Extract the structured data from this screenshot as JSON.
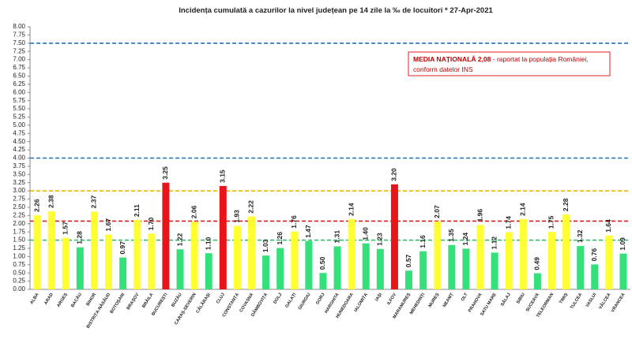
{
  "chart_data": {
    "type": "bar",
    "title": "Incidența cumulată a cazurilor la nivel județean pe 14 zile la ‰ de locuitori *   27-Apr-2021",
    "categories": [
      "ALBA",
      "ARAD",
      "ARGEȘ",
      "BACĂU",
      "BIHOR",
      "BISTRIȚA-NĂSĂUD",
      "BOTOȘANI",
      "BRAȘOV",
      "BRĂILA",
      "BUCUREȘTI",
      "BUZĂU",
      "CARAȘ-SEVERIN",
      "CĂLĂRAȘI",
      "CLUJ",
      "CONSTANȚA",
      "COVASNA",
      "DÂMBOVIȚA",
      "DOLJ",
      "GALAȚI",
      "GIURGIU",
      "GORJ",
      "HARGHITA",
      "HUNEDOARA",
      "IALOMIȚA",
      "IAȘI",
      "ILFOV",
      "MARAMUREȘ",
      "MEHEDINȚI",
      "MUREȘ",
      "NEAMȚ",
      "OLT",
      "PRAHOVA",
      "SATU MARE",
      "SĂLAJ",
      "SIBIU",
      "SUCEAVA",
      "TELEORMAN",
      "TIMIȘ",
      "TULCEA",
      "VASLUI",
      "VÂLCEA",
      "VRANCEA"
    ],
    "values": [
      2.26,
      2.38,
      1.57,
      1.28,
      2.37,
      1.67,
      0.97,
      2.11,
      1.7,
      3.25,
      1.22,
      2.06,
      1.1,
      3.15,
      1.93,
      2.22,
      1.03,
      1.26,
      1.76,
      1.47,
      0.5,
      1.31,
      2.14,
      1.4,
      1.23,
      3.2,
      0.57,
      1.16,
      2.07,
      1.35,
      1.24,
      1.96,
      1.12,
      1.74,
      2.14,
      0.49,
      1.75,
      2.28,
      1.32,
      0.76,
      1.64,
      1.09
    ],
    "value_labels": [
      "2.26",
      "2.38",
      "1.57",
      "1.28",
      "2.37",
      "1.67",
      "0.97",
      "2.11",
      "1.70",
      "3.25",
      "1.22",
      "2.06",
      "1.10",
      "3.15",
      "1.93",
      "2.22",
      "1.03",
      "1.26",
      "1.76",
      "1.47",
      "0.50",
      "1.31",
      "2.14",
      "1.40",
      "1.23",
      "3.20",
      "0.57",
      "1.16",
      "2.07",
      "1.35",
      "1.24",
      "1.96",
      "1.12",
      "1.74",
      "2.14",
      "0.49",
      "1.75",
      "2.28",
      "1.32",
      "0.76",
      "1.64",
      "1.09"
    ],
    "colors": [
      "#ffff33",
      "#ffff33",
      "#ffff33",
      "#33e07a",
      "#ffff33",
      "#ffff33",
      "#33e07a",
      "#ffff33",
      "#ffff33",
      "#e8141a",
      "#33e07a",
      "#ffff33",
      "#33e07a",
      "#e8141a",
      "#ffff33",
      "#ffff33",
      "#33e07a",
      "#33e07a",
      "#ffff33",
      "#33e07a",
      "#33e07a",
      "#33e07a",
      "#ffff33",
      "#33e07a",
      "#33e07a",
      "#e8141a",
      "#33e07a",
      "#33e07a",
      "#ffff33",
      "#33e07a",
      "#33e07a",
      "#ffff33",
      "#33e07a",
      "#ffff33",
      "#ffff33",
      "#33e07a",
      "#ffff33",
      "#ffff33",
      "#33e07a",
      "#33e07a",
      "#ffff33",
      "#33e07a"
    ],
    "ylim": [
      0,
      8
    ],
    "yticks": [
      {
        "value": 0,
        "label": "0.00"
      },
      {
        "value": 0.25,
        "label": "0.25"
      },
      {
        "value": 0.5,
        "label": "0.50"
      },
      {
        "value": 0.75,
        "label": "0.75"
      },
      {
        "value": 1,
        "label": "1.00"
      },
      {
        "value": 1.25,
        "label": "1.25"
      },
      {
        "value": 1.5,
        "label": "1.50"
      },
      {
        "value": 1.75,
        "label": "1.75"
      },
      {
        "value": 2,
        "label": "2.00"
      },
      {
        "value": 2.25,
        "label": "2.25"
      },
      {
        "value": 2.5,
        "label": "2.50"
      },
      {
        "value": 2.75,
        "label": "2.75"
      },
      {
        "value": 3,
        "label": "3.00"
      },
      {
        "value": 3.25,
        "label": "3.25"
      },
      {
        "value": 3.5,
        "label": "3.50"
      },
      {
        "value": 3.75,
        "label": "3.75"
      },
      {
        "value": 4,
        "label": "4.00"
      },
      {
        "value": 4.25,
        "label": "4.25"
      },
      {
        "value": 4.5,
        "label": "4.50"
      },
      {
        "value": 4.75,
        "label": "4.75"
      },
      {
        "value": 5,
        "label": "5.00"
      },
      {
        "value": 5.25,
        "label": "5.25"
      },
      {
        "value": 5.5,
        "label": "5.50"
      },
      {
        "value": 5.75,
        "label": "5.75"
      },
      {
        "value": 6,
        "label": "6.00"
      },
      {
        "value": 6.25,
        "label": "6.25"
      },
      {
        "value": 6.5,
        "label": "6.50"
      },
      {
        "value": 6.75,
        "label": "6.75"
      },
      {
        "value": 7,
        "label": "7.00"
      },
      {
        "value": 7.25,
        "label": "7.25"
      },
      {
        "value": 7.5,
        "label": "7.50"
      },
      {
        "value": 7.75,
        "label": "7.75"
      },
      {
        "value": 8,
        "label": "8.00"
      }
    ],
    "reference_lines": [
      {
        "value": 1.5,
        "color": "#3cb868"
      },
      {
        "value": 2.08,
        "color": "#d42020"
      },
      {
        "value": 3,
        "color": "#e0b000"
      },
      {
        "value": 4,
        "color": "#2a6fb5"
      },
      {
        "value": 7.5,
        "color": "#2a6fb5"
      }
    ],
    "annotation": [
      "MEDIA NAȚIONALĂ  2,08",
      " - raportat la populația României,",
      "conform datelor INS"
    ]
  }
}
